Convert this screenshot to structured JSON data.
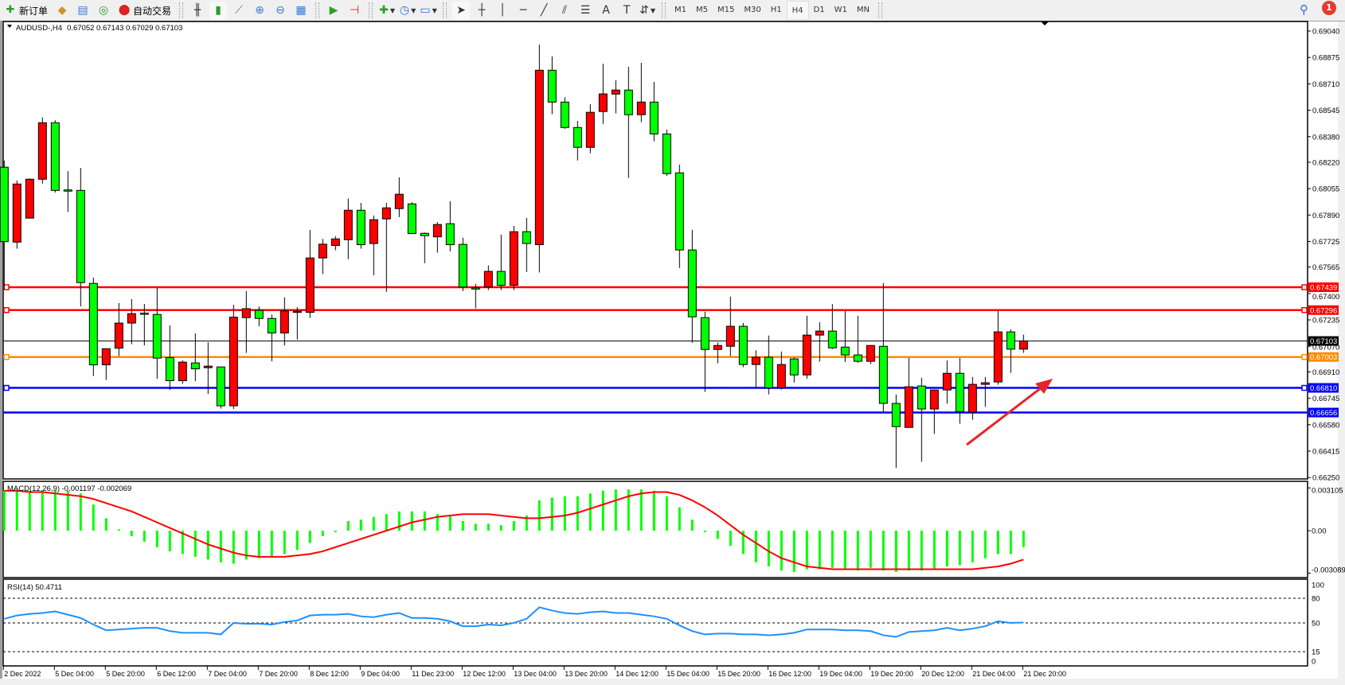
{
  "toolbar": {
    "new_order": "新订单",
    "auto_trading": "自动交易",
    "icons": [
      "new-order-icon",
      "market-watch-icon",
      "navigator-icon",
      "signals-icon",
      "auto-trading-icon",
      "bar-chart-icon",
      "candlestick-icon",
      "line-chart-icon",
      "zoom-in-icon",
      "zoom-out-icon",
      "tile-windows-icon",
      "auto-scroll-icon",
      "chart-shift-icon",
      "indicators-icon",
      "periods-icon",
      "templates-icon",
      "cursor-icon",
      "crosshair-icon",
      "vertical-line-icon",
      "horizontal-line-icon",
      "trendline-icon",
      "equidistant-channel-icon",
      "fibonacci-icon",
      "text-icon",
      "text-label-icon",
      "arrows-icon"
    ],
    "timeframes": [
      "M1",
      "M5",
      "M15",
      "M30",
      "H1",
      "H4",
      "D1",
      "W1",
      "MN"
    ],
    "active_timeframe": "H4",
    "notification_count": "1"
  },
  "chart": {
    "symbol_label": "AUDUSD-,H4",
    "ohlc_label": "0.67052 0.67143 0.67029 0.67103",
    "macd_label": "MACD(12,26,9) -0.001197 -0.002069",
    "rsi_label": "RSI(14) 50.4711",
    "colors": {
      "bull": "#ff0000",
      "bear": "#00ff00",
      "macd_hist": "#00ff00",
      "macd_signal": "#ff0000",
      "rsi": "#1e90ff"
    }
  },
  "chart_data": [
    {
      "type": "candlestick",
      "symbol": "AUDUSD-",
      "timeframe": "H4",
      "ylim": [
        0.6625,
        0.6912
      ],
      "price_ticks": [
        "0.69040",
        "0.68875",
        "0.68710",
        "0.68545",
        "0.68380",
        "0.68220",
        "0.68055",
        "0.67890",
        "0.67725",
        "0.67565",
        "0.67400",
        "0.67235",
        "0.67070",
        "0.66910",
        "0.66745",
        "0.66580",
        "0.66415",
        "0.66250"
      ],
      "time_labels": [
        "2 Dec 2022",
        "5 Dec 04:00",
        "5 Dec 20:00",
        "6 Dec 12:00",
        "7 Dec 04:00",
        "7 Dec 20:00",
        "8 Dec 12:00",
        "9 Dec 04:00",
        "11 Dec 23:00",
        "12 Dec 12:00",
        "13 Dec 04:00",
        "13 Dec 20:00",
        "14 Dec 12:00",
        "15 Dec 04:00",
        "15 Dec 20:00",
        "16 Dec 12:00",
        "19 Dec 04:00",
        "19 Dec 20:00",
        "20 Dec 12:00",
        "21 Dec 04:00",
        "21 Dec 20:00"
      ],
      "ohlc": [
        [
          0.68189,
          0.6823,
          0.67426,
          0.67724
        ],
        [
          0.67721,
          0.68106,
          0.6768,
          0.68084
        ],
        [
          0.67871,
          0.68119,
          0.67871,
          0.68114
        ],
        [
          0.68114,
          0.685,
          0.68086,
          0.68467
        ],
        [
          0.68467,
          0.68482,
          0.68031,
          0.68044
        ],
        [
          0.68047,
          0.68164,
          0.6791,
          0.68045
        ],
        [
          0.68044,
          0.68185,
          0.67319,
          0.67468
        ],
        [
          0.67463,
          0.67499,
          0.66884,
          0.66954
        ],
        [
          0.66954,
          0.67055,
          0.6686,
          0.67055
        ],
        [
          0.67058,
          0.6734,
          0.67009,
          0.67215
        ],
        [
          0.67215,
          0.67365,
          0.67083,
          0.67274
        ],
        [
          0.67277,
          0.67335,
          0.67075,
          0.67274
        ],
        [
          0.67269,
          0.67435,
          0.66867,
          0.66996
        ],
        [
          0.66999,
          0.672,
          0.66797,
          0.66855
        ],
        [
          0.66855,
          0.66982,
          0.66835,
          0.66971
        ],
        [
          0.66966,
          0.6715,
          0.66852,
          0.66929
        ],
        [
          0.66936,
          0.67095,
          0.66772,
          0.66946
        ],
        [
          0.66941,
          0.66943,
          0.66681,
          0.66698
        ],
        [
          0.66698,
          0.6733,
          0.66678,
          0.67252
        ],
        [
          0.67249,
          0.67415,
          0.67029,
          0.67305
        ],
        [
          0.67294,
          0.67319,
          0.67195,
          0.67244
        ],
        [
          0.67244,
          0.67269,
          0.66976,
          0.67153
        ],
        [
          0.67153,
          0.67376,
          0.67075,
          0.67291
        ],
        [
          0.67282,
          0.67314,
          0.67112,
          0.67289
        ],
        [
          0.67282,
          0.67797,
          0.67247,
          0.67622
        ],
        [
          0.67622,
          0.67741,
          0.67521,
          0.67708
        ],
        [
          0.677,
          0.67758,
          0.6767,
          0.67741
        ],
        [
          0.67736,
          0.67993,
          0.67614,
          0.6792
        ],
        [
          0.6792,
          0.67966,
          0.6768,
          0.67705
        ],
        [
          0.67712,
          0.67887,
          0.67514,
          0.67861
        ],
        [
          0.67866,
          0.67966,
          0.6741,
          0.67935
        ],
        [
          0.6793,
          0.68126,
          0.67877,
          0.6802
        ],
        [
          0.6796,
          0.6797,
          0.67774,
          0.67774
        ],
        [
          0.67776,
          0.67781,
          0.67589,
          0.67761
        ],
        [
          0.67754,
          0.67847,
          0.67655,
          0.67831
        ],
        [
          0.67836,
          0.67976,
          0.67663,
          0.67705
        ],
        [
          0.67707,
          0.67748,
          0.67415,
          0.6744
        ],
        [
          0.67435,
          0.6746,
          0.67307,
          0.67433
        ],
        [
          0.6744,
          0.67575,
          0.67421,
          0.67538
        ],
        [
          0.67538,
          0.67768,
          0.67421,
          0.67451
        ],
        [
          0.67451,
          0.67822,
          0.67421,
          0.67786
        ],
        [
          0.67786,
          0.67872,
          0.67534,
          0.67712
        ],
        [
          0.67705,
          0.68955,
          0.67531,
          0.68795
        ],
        [
          0.68795,
          0.68881,
          0.6852,
          0.68596
        ],
        [
          0.68596,
          0.68626,
          0.68429,
          0.68437
        ],
        [
          0.68437,
          0.68478,
          0.68231,
          0.68313
        ],
        [
          0.68313,
          0.68583,
          0.68276,
          0.68532
        ],
        [
          0.68537,
          0.68836,
          0.6846,
          0.68647
        ],
        [
          0.68646,
          0.68732,
          0.68525,
          0.68671
        ],
        [
          0.68671,
          0.68816,
          0.68122,
          0.68517
        ],
        [
          0.68517,
          0.68841,
          0.6847,
          0.68596
        ],
        [
          0.68596,
          0.68722,
          0.68351,
          0.68397
        ],
        [
          0.68397,
          0.68424,
          0.68135,
          0.68149
        ],
        [
          0.68154,
          0.68205,
          0.67559,
          0.67672
        ],
        [
          0.67672,
          0.67797,
          0.67092,
          0.67254
        ],
        [
          0.67249,
          0.67286,
          0.66785,
          0.6705
        ],
        [
          0.6705,
          0.67095,
          0.66963,
          0.67075
        ],
        [
          0.6707,
          0.6738,
          0.67009,
          0.67195
        ],
        [
          0.67195,
          0.67216,
          0.66939,
          0.66956
        ],
        [
          0.66956,
          0.67045,
          0.6681,
          0.67001
        ],
        [
          0.67001,
          0.67137,
          0.66769,
          0.6681
        ],
        [
          0.6681,
          0.67037,
          0.668,
          0.66956
        ],
        [
          0.66991,
          0.66999,
          0.66843,
          0.66891
        ],
        [
          0.66891,
          0.67261,
          0.66867,
          0.6714
        ],
        [
          0.6714,
          0.6722,
          0.66974,
          0.67165
        ],
        [
          0.67165,
          0.67334,
          0.67053,
          0.6706
        ],
        [
          0.67065,
          0.67291,
          0.66971,
          0.67016
        ],
        [
          0.67016,
          0.67261,
          0.66966,
          0.66976
        ],
        [
          0.66976,
          0.67075,
          0.66959,
          0.67075
        ],
        [
          0.6707,
          0.67465,
          0.66658,
          0.66713
        ],
        [
          0.66713,
          0.66769,
          0.6631,
          0.66568
        ],
        [
          0.66563,
          0.66997,
          0.66563,
          0.66817
        ],
        [
          0.66822,
          0.66873,
          0.66348,
          0.66678
        ],
        [
          0.66678,
          0.66797,
          0.66522,
          0.66797
        ],
        [
          0.66797,
          0.66981,
          0.66711,
          0.66901
        ],
        [
          0.66901,
          0.66997,
          0.66586,
          0.66661
        ],
        [
          0.66658,
          0.66878,
          0.66611,
          0.66832
        ],
        [
          0.66832,
          0.66878,
          0.66691,
          0.66842
        ],
        [
          0.66847,
          0.67292,
          0.6683,
          0.6716
        ],
        [
          0.6716,
          0.67176,
          0.66904,
          0.67052
        ],
        [
          0.67052,
          0.67143,
          0.67029,
          0.67103
        ]
      ],
      "horizontal_lines": [
        {
          "price": "0.67439",
          "color": "#ff0000",
          "marker": true
        },
        {
          "price": "0.67296",
          "color": "#ff0000",
          "marker": true
        },
        {
          "price": "0.67103",
          "color": "#000000",
          "marker": false
        },
        {
          "price": "0.67003",
          "color": "#ff8c00",
          "marker": true
        },
        {
          "price": "0.66810",
          "color": "#0000ff",
          "marker": true
        },
        {
          "price": "0.66656",
          "color": "#0000ff",
          "marker": false
        }
      ],
      "annotations": [
        {
          "type": "arrow",
          "color": "#e8242a",
          "direction": "up-right"
        }
      ]
    },
    {
      "type": "bar+line",
      "indicator": "MACD(12,26,9)",
      "ylim": [
        -0.003089,
        0.003105
      ],
      "ticks": [
        "0.003105",
        "0.00",
        "-0.003089"
      ],
      "histogram": [
        0.0029,
        0.0029,
        0.0029,
        0.0029,
        0.0029,
        0.0029,
        0.0027,
        0.0019,
        0.0009,
        0.0001,
        -0.0004,
        -0.0008,
        -0.0012,
        -0.0015,
        -0.0017,
        -0.0019,
        -0.0021,
        -0.0023,
        -0.0024,
        -0.0021,
        -0.002,
        -0.0019,
        -0.0017,
        -0.0014,
        -0.0009,
        -0.0004,
        -0.0001,
        0.0007,
        0.0008,
        0.001,
        0.0012,
        0.0014,
        0.0014,
        0.0014,
        0.0012,
        0.0011,
        0.0007,
        0.0005,
        0.0005,
        0.0004,
        0.0007,
        0.0011,
        0.0022,
        0.0024,
        0.0025,
        0.0025,
        0.0027,
        0.0029,
        0.003,
        0.003,
        0.003,
        0.0029,
        0.0025,
        0.0017,
        0.0008,
        -0.0001,
        -0.0006,
        -0.0011,
        -0.0017,
        -0.0023,
        -0.0026,
        -0.0029,
        -0.003,
        -0.0028,
        -0.0028,
        -0.0027,
        -0.0028,
        -0.0029,
        -0.0027,
        -0.0029,
        -0.003,
        -0.0029,
        -0.0029,
        -0.0028,
        -0.0026,
        -0.0025,
        -0.0023,
        -0.002,
        -0.0017,
        -0.0017,
        -0.0012
      ],
      "signal": [
        0.0029,
        0.0029,
        0.0028,
        0.0028,
        0.0027,
        0.0026,
        0.0025,
        0.0023,
        0.002,
        0.0017,
        0.0014,
        0.001,
        0.0006,
        0.0002,
        -0.0002,
        -0.0006,
        -0.001,
        -0.0013,
        -0.0016,
        -0.0018,
        -0.0019,
        -0.0019,
        -0.0019,
        -0.0018,
        -0.0017,
        -0.0015,
        -0.0012,
        -0.0009,
        -0.0006,
        -0.0003,
        0.0,
        0.0003,
        0.0006,
        0.0008,
        0.001,
        0.0011,
        0.0012,
        0.0012,
        0.0012,
        0.0011,
        0.001,
        0.0009,
        0.0009,
        0.001,
        0.0011,
        0.0013,
        0.0016,
        0.0019,
        0.0022,
        0.0025,
        0.0027,
        0.0028,
        0.0028,
        0.0026,
        0.0022,
        0.0017,
        0.0011,
        0.0004,
        -0.0003,
        -0.0009,
        -0.0015,
        -0.002,
        -0.0023,
        -0.0026,
        -0.0027,
        -0.0028,
        -0.0028,
        -0.0028,
        -0.0028,
        -0.0028,
        -0.0028,
        -0.0028,
        -0.0028,
        -0.0028,
        -0.0028,
        -0.0028,
        -0.0028,
        -0.0027,
        -0.0026,
        -0.0024,
        -0.0021
      ]
    },
    {
      "type": "line",
      "indicator": "RSI(14)",
      "ylim": [
        0,
        100
      ],
      "ticks": [
        "100",
        "80",
        "50",
        "15",
        "0"
      ],
      "levels": [
        80,
        50,
        15
      ],
      "values": [
        55,
        59,
        61,
        62,
        64,
        60,
        56,
        48,
        41,
        42,
        43,
        44,
        44,
        40,
        38,
        38,
        38,
        36,
        50,
        49,
        49,
        48,
        51,
        53,
        59,
        60,
        60,
        61,
        58,
        57,
        60,
        62,
        56,
        56,
        55,
        52,
        46,
        46,
        48,
        47,
        50,
        55,
        69,
        65,
        62,
        61,
        63,
        64,
        62,
        62,
        60,
        58,
        55,
        47,
        40,
        36,
        37,
        37,
        36,
        36,
        35,
        36,
        38,
        42,
        42,
        42,
        41,
        41,
        40,
        35,
        33,
        39,
        40,
        41,
        44,
        41,
        43,
        46,
        52,
        50,
        50.47
      ]
    }
  ]
}
